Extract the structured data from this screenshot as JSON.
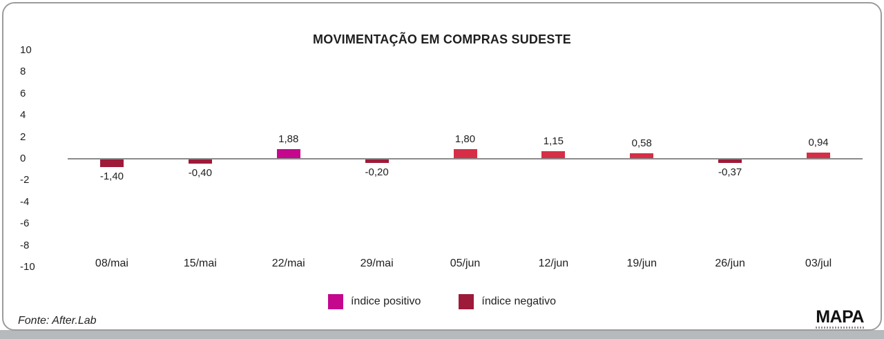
{
  "card": {
    "title": "MOVIMENTAÇÃO EM COMPRAS SUDESTE",
    "footer": {
      "source": "Fonte: After.Lab",
      "logo": "MAPA"
    }
  },
  "legend": [
    {
      "label": "índice positivo",
      "color_key": "positive_accent"
    },
    {
      "label": "índice negativo",
      "color_key": "negative"
    }
  ],
  "colors": {
    "positive_accent": "#c4078c",
    "positive": "#d62e46",
    "negative": "#9e1a39",
    "axis_line": "#8a8a8a",
    "border": "#9b9b9b",
    "bottom_strip": "#b7babc",
    "text": "#1e1e1e"
  },
  "chart_data": {
    "type": "bar",
    "title": "MOVIMENTAÇÃO EM COMPRAS SUDESTE",
    "categories": [
      "08/mai",
      "15/mai",
      "22/mai",
      "29/mai",
      "05/jun",
      "12/jun",
      "19/jun",
      "26/jun",
      "03/jul"
    ],
    "values": [
      -1.4,
      -0.4,
      1.88,
      -0.2,
      1.8,
      1.15,
      0.58,
      -0.37,
      0.94
    ],
    "labels": [
      "-1,40",
      "-0,40",
      "1,88",
      "-0,20",
      "1,80",
      "1,15",
      "0,58",
      "-0,37",
      "0,94"
    ],
    "point_colors": [
      "negative",
      "negative",
      "positive_accent",
      "negative",
      "positive",
      "positive",
      "positive",
      "negative",
      "positive"
    ],
    "xlabel": "",
    "ylabel": "",
    "y_ticks": [
      10,
      8,
      6,
      4,
      2,
      0,
      -2,
      -4,
      -6,
      -8,
      -10
    ],
    "ylim": [
      -10,
      10
    ],
    "grid": false,
    "legend_position": "bottom",
    "source": "Fonte: After.Lab"
  }
}
